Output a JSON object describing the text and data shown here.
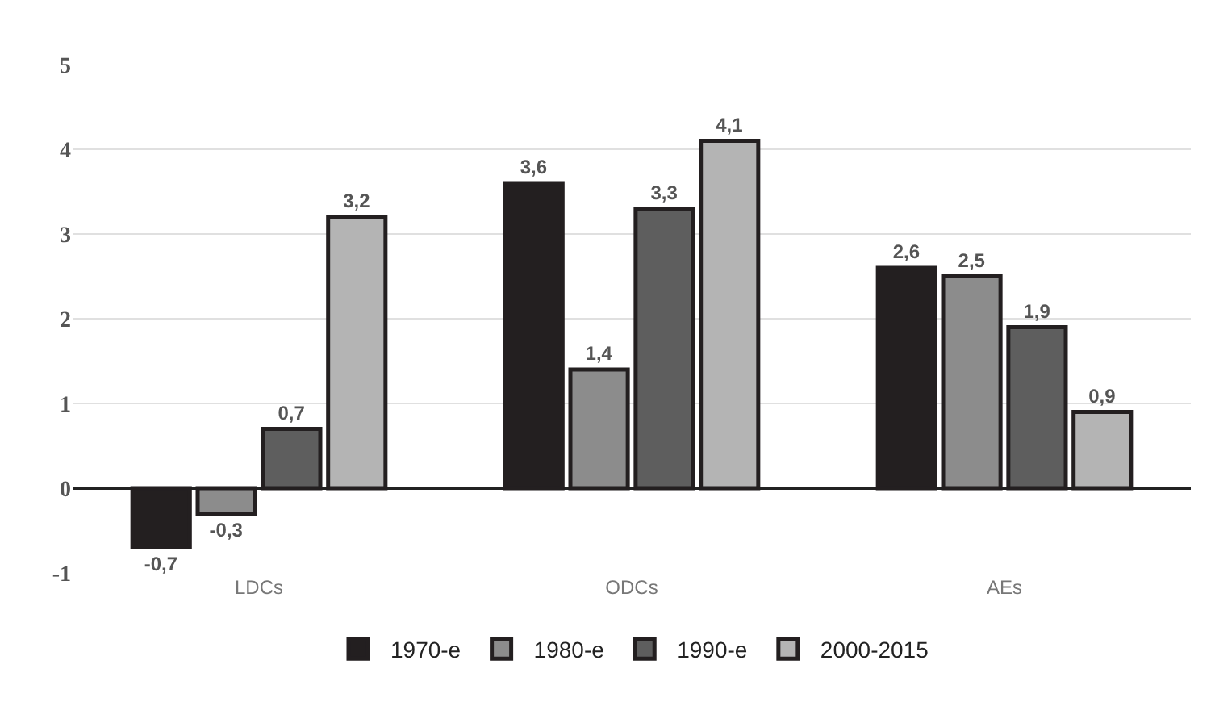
{
  "chart_data": {
    "type": "bar",
    "categories": [
      "LDCs",
      "ODCs",
      "AEs"
    ],
    "series": [
      {
        "name": "1970-e",
        "color": "#231f20",
        "values": [
          -0.7,
          3.6,
          2.6
        ],
        "value_labels": [
          "-0,7",
          "3,6",
          "2,6"
        ]
      },
      {
        "name": "1980-e",
        "color": "#8c8c8c",
        "values": [
          -0.3,
          1.4,
          2.5
        ],
        "value_labels": [
          "-0,3",
          "1,4",
          "2,5"
        ]
      },
      {
        "name": "1990-e",
        "color": "#5e5e5e",
        "values": [
          0.7,
          3.3,
          1.9
        ],
        "value_labels": [
          "0,7",
          "3,3",
          "1,9"
        ]
      },
      {
        "name": "2000-2015",
        "color": "#b4b4b4",
        "values": [
          3.2,
          4.1,
          0.9
        ],
        "value_labels": [
          "3,2",
          "4,1",
          "0,9"
        ]
      }
    ],
    "ylim": [
      -1,
      5
    ],
    "yticks": [
      -1,
      0,
      1,
      2,
      3,
      4,
      5
    ],
    "grid": "y",
    "legend": "bottom"
  }
}
